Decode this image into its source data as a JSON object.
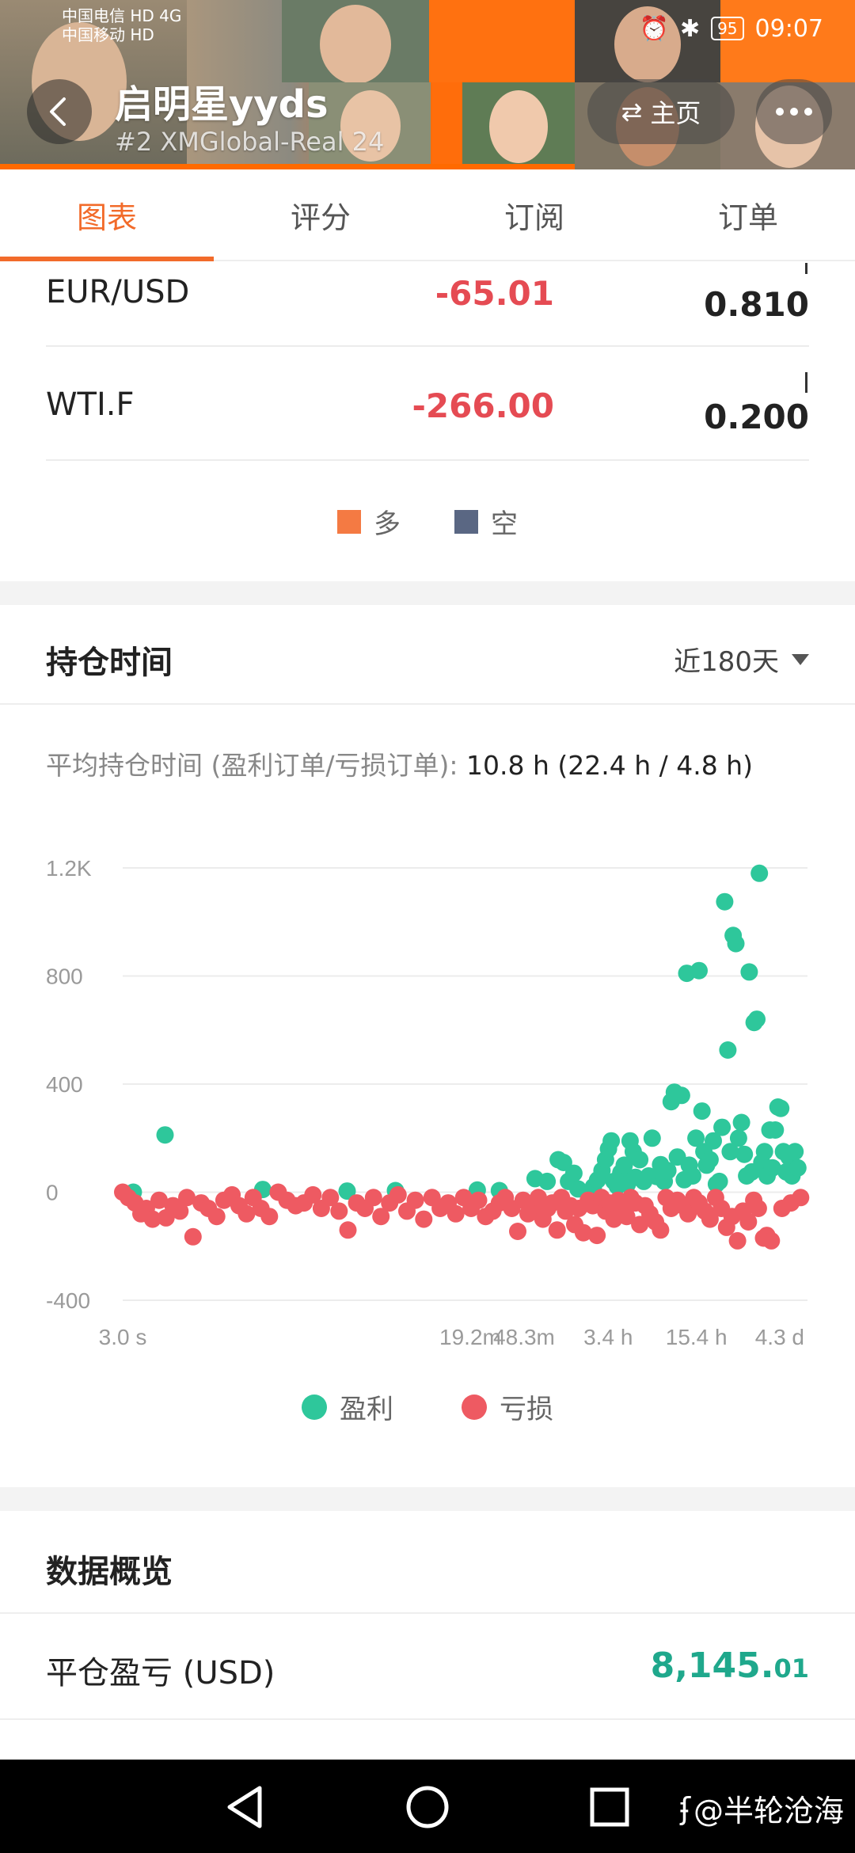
{
  "status_bar": {
    "carrier_1": "中国电信",
    "carrier_2": "中国移动",
    "hd_badge": "HD",
    "network": "4G",
    "battery": "95",
    "time": "09:07"
  },
  "header": {
    "name": "启明星yyds",
    "subtitle": "#2  XMGlobal-Real 24",
    "home_label": "主页"
  },
  "tabs": [
    {
      "label": "图表",
      "active": true
    },
    {
      "label": "评分",
      "active": false
    },
    {
      "label": "订阅",
      "active": false
    },
    {
      "label": "订单",
      "active": false
    }
  ],
  "positions": [
    {
      "symbol": "EUR/USD",
      "pl": "-65.01",
      "lots": "0.810"
    },
    {
      "symbol": "WTI.F",
      "pl": "-266.00",
      "lots": "0.200"
    }
  ],
  "long_short_legend": {
    "long_label": "多",
    "short_label": "空",
    "long_color": "#f47a43",
    "short_color": "#5a6783"
  },
  "holding_time": {
    "title": "持仓时间",
    "range": "近180天",
    "avg_label": "平均持仓时间 (盈利订单/亏损订单):",
    "avg_value": "10.8 h (22.4 h / 4.8 h)"
  },
  "chart_data": {
    "type": "scatter",
    "x_scale": "log",
    "x_tick_labels": [
      "3.0 s",
      "19.2m",
      "48.3m",
      "3.4 h",
      "15.4 h",
      "4.3 d"
    ],
    "x_tick_seconds": [
      3,
      1152,
      2898,
      12240,
      55440,
      371520
    ],
    "y_tick_labels": [
      "1.2K",
      "800",
      "400",
      "0",
      "-400"
    ],
    "y_ticks": [
      1200,
      800,
      400,
      0,
      -400
    ],
    "ylim": [
      -400,
      1200
    ],
    "grid": "horizontal",
    "legend_position": "bottom",
    "series": [
      {
        "name": "盈利",
        "color": "#2ec79b",
        "points": [
          [
            3.6,
            0
          ],
          [
            6.2,
            212
          ],
          [
            33,
            10
          ],
          [
            140,
            4
          ],
          [
            320,
            6
          ],
          [
            1300,
            8
          ],
          [
            1900,
            6
          ],
          [
            3500,
            50
          ],
          [
            4300,
            40
          ],
          [
            5200,
            120
          ],
          [
            5700,
            110
          ],
          [
            6200,
            40
          ],
          [
            6800,
            70
          ],
          [
            7300,
            12
          ],
          [
            9500,
            20
          ],
          [
            10200,
            45
          ],
          [
            11000,
            80
          ],
          [
            11700,
            120
          ],
          [
            12300,
            160
          ],
          [
            12900,
            190
          ],
          [
            13500,
            40
          ],
          [
            14300,
            22
          ],
          [
            15200,
            72
          ],
          [
            16100,
            100
          ],
          [
            17000,
            30
          ],
          [
            17800,
            190
          ],
          [
            18800,
            150
          ],
          [
            19500,
            55
          ],
          [
            21000,
            120
          ],
          [
            22500,
            40
          ],
          [
            24500,
            60
          ],
          [
            26000,
            200
          ],
          [
            28000,
            58
          ],
          [
            30000,
            102
          ],
          [
            32000,
            40
          ],
          [
            34000,
            80
          ],
          [
            36000,
            335
          ],
          [
            38000,
            370
          ],
          [
            40000,
            130
          ],
          [
            43000,
            358
          ],
          [
            45000,
            46
          ],
          [
            47000,
            810
          ],
          [
            49000,
            100
          ],
          [
            52000,
            60
          ],
          [
            55000,
            200
          ],
          [
            58000,
            820
          ],
          [
            61000,
            300
          ],
          [
            63000,
            150
          ],
          [
            66000,
            100
          ],
          [
            70000,
            120
          ],
          [
            74000,
            190
          ],
          [
            78000,
            30
          ],
          [
            82000,
            40
          ],
          [
            86000,
            240
          ],
          [
            90000,
            1075
          ],
          [
            95000,
            526
          ],
          [
            99000,
            150
          ],
          [
            104000,
            950
          ],
          [
            109000,
            920
          ],
          [
            114000,
            200
          ],
          [
            120000,
            258
          ],
          [
            126000,
            140
          ],
          [
            131000,
            60
          ],
          [
            137000,
            815
          ],
          [
            143000,
            75
          ],
          [
            149000,
            628
          ],
          [
            156000,
            640
          ],
          [
            163000,
            1180
          ],
          [
            170000,
            110
          ],
          [
            178000,
            150
          ],
          [
            186000,
            60
          ],
          [
            195000,
            230
          ],
          [
            204000,
            90
          ],
          [
            214000,
            230
          ],
          [
            224000,
            315
          ],
          [
            235000,
            310
          ],
          [
            246000,
            150
          ],
          [
            258000,
            75
          ],
          [
            270000,
            130
          ],
          [
            285000,
            60
          ],
          [
            300000,
            150
          ],
          [
            315000,
            90
          ]
        ]
      },
      {
        "name": "亏损",
        "color": "#ee5a62",
        "points": [
          [
            3,
            0
          ],
          [
            3.3,
            -20
          ],
          [
            3.7,
            -40
          ],
          [
            4.1,
            -80
          ],
          [
            4.5,
            -60
          ],
          [
            5,
            -100
          ],
          [
            5.6,
            -30
          ],
          [
            6.3,
            -95
          ],
          [
            7.1,
            -50
          ],
          [
            8,
            -70
          ],
          [
            9,
            -20
          ],
          [
            10,
            -165
          ],
          [
            11.5,
            -40
          ],
          [
            13,
            -60
          ],
          [
            15,
            -90
          ],
          [
            17,
            -30
          ],
          [
            19.5,
            -10
          ],
          [
            22,
            -50
          ],
          [
            25,
            -80
          ],
          [
            28,
            -20
          ],
          [
            32,
            -60
          ],
          [
            37,
            -90
          ],
          [
            43,
            0
          ],
          [
            50,
            -30
          ],
          [
            58,
            -50
          ],
          [
            67,
            -40
          ],
          [
            78,
            -10
          ],
          [
            90,
            -60
          ],
          [
            105,
            -20
          ],
          [
            122,
            -70
          ],
          [
            142,
            -140
          ],
          [
            165,
            -40
          ],
          [
            190,
            -60
          ],
          [
            220,
            -20
          ],
          [
            250,
            -90
          ],
          [
            290,
            -40
          ],
          [
            335,
            -10
          ],
          [
            390,
            -70
          ],
          [
            450,
            -30
          ],
          [
            520,
            -100
          ],
          [
            600,
            -20
          ],
          [
            690,
            -60
          ],
          [
            790,
            -40
          ],
          [
            900,
            -80
          ],
          [
            1030,
            -20
          ],
          [
            1170,
            -60
          ],
          [
            1330,
            -30
          ],
          [
            1500,
            -90
          ],
          [
            1700,
            -70
          ],
          [
            1900,
            -40
          ],
          [
            2100,
            -20
          ],
          [
            2350,
            -60
          ],
          [
            2600,
            -145
          ],
          [
            2850,
            -30
          ],
          [
            3100,
            -80
          ],
          [
            3400,
            -50
          ],
          [
            3700,
            -20
          ],
          [
            4000,
            -100
          ],
          [
            4350,
            -60
          ],
          [
            4700,
            -40
          ],
          [
            5100,
            -140
          ],
          [
            5500,
            -20
          ],
          [
            5900,
            -70
          ],
          [
            6400,
            -50
          ],
          [
            6900,
            -120
          ],
          [
            7400,
            -60
          ],
          [
            8000,
            -150
          ],
          [
            8700,
            -30
          ],
          [
            9400,
            -50
          ],
          [
            10100,
            -160
          ],
          [
            10900,
            -20
          ],
          [
            11700,
            -70
          ],
          [
            12500,
            -40
          ],
          [
            13500,
            -100
          ],
          [
            14500,
            -30
          ],
          [
            15600,
            -60
          ],
          [
            16800,
            -90
          ],
          [
            18000,
            -20
          ],
          [
            19500,
            -40
          ],
          [
            21000,
            -120
          ],
          [
            23000,
            -50
          ],
          [
            25000,
            -80
          ],
          [
            27500,
            -110
          ],
          [
            30000,
            -140
          ],
          [
            33000,
            -20
          ],
          [
            36000,
            -60
          ],
          [
            40000,
            -30
          ],
          [
            44000,
            -50
          ],
          [
            48000,
            -80
          ],
          [
            53000,
            -20
          ],
          [
            58000,
            -40
          ],
          [
            64000,
            -70
          ],
          [
            70000,
            -100
          ],
          [
            77000,
            -20
          ],
          [
            85000,
            -60
          ],
          [
            93000,
            -130
          ],
          [
            102000,
            -90
          ],
          [
            112000,
            -180
          ],
          [
            123000,
            -70
          ],
          [
            135000,
            -110
          ],
          [
            148000,
            -30
          ],
          [
            160000,
            -60
          ],
          [
            175000,
            -170
          ],
          [
            185000,
            -160
          ],
          [
            200000,
            -180
          ],
          [
            240000,
            -60
          ],
          [
            280000,
            -40
          ],
          [
            330000,
            -20
          ]
        ]
      }
    ]
  },
  "profit_loss_legend": {
    "profit_label": "盈利",
    "loss_label": "亏损"
  },
  "overview": {
    "title": "数据概览",
    "closed_pl_label": "平仓盈亏 (USD)",
    "closed_pl_main": "8,145.",
    "closed_pl_cents": "01"
  },
  "navbar": {
    "watermark": "@半轮沧海"
  }
}
